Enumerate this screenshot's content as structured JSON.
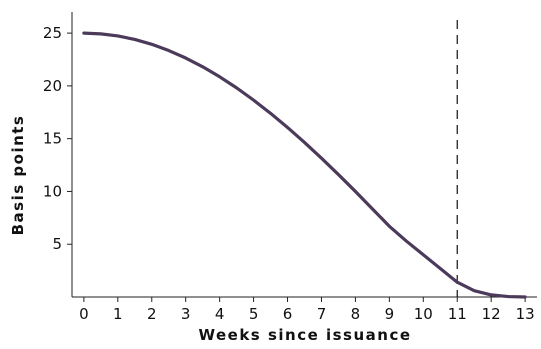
{
  "chart_data": {
    "type": "line",
    "title": "",
    "xlabel": "Weeks since issuance",
    "ylabel": "Basis points",
    "xlim": [
      -0.35,
      13.35
    ],
    "ylim": [
      0,
      27
    ],
    "x_ticks": [
      0,
      1,
      2,
      3,
      4,
      5,
      6,
      7,
      8,
      9,
      10,
      11,
      12,
      13
    ],
    "y_ticks": [
      5,
      10,
      15,
      20,
      25
    ],
    "grid": false,
    "legend": "none",
    "line_color": "#4b3a5a",
    "series": [
      {
        "x": [
          0,
          0.5,
          1,
          1.5,
          2,
          2.5,
          3,
          3.5,
          4,
          4.5,
          5,
          5.5,
          6,
          6.5,
          7,
          7.5,
          8,
          8.5,
          9,
          9.5,
          10,
          10.5,
          11,
          11.5,
          12,
          12.5,
          13
        ],
        "y": [
          25.0,
          24.93,
          24.73,
          24.4,
          23.94,
          23.35,
          22.64,
          21.81,
          20.86,
          19.81,
          18.65,
          17.4,
          16.06,
          14.64,
          13.15,
          11.6,
          10.0,
          8.35,
          6.7,
          5.3,
          4.0,
          2.7,
          1.4,
          0.6,
          0.2,
          0.04,
          0.0
        ]
      }
    ],
    "annotations": [
      {
        "type": "vline",
        "x": 11,
        "style": "dashed"
      }
    ]
  }
}
